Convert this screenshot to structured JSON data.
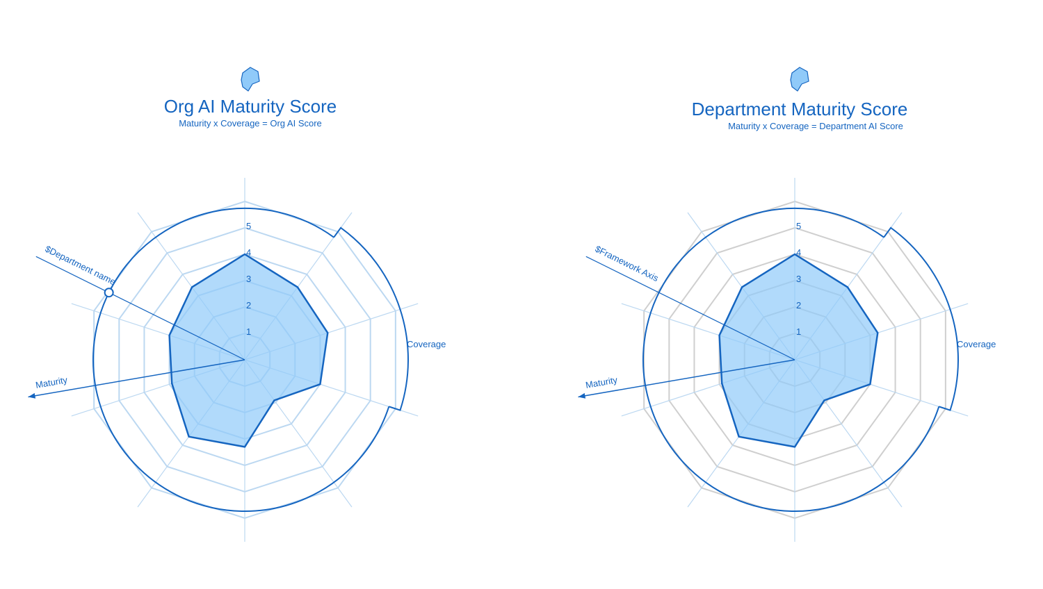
{
  "charts": [
    {
      "title": "Org AI Maturity Score",
      "subtitle": "Maturity x Coverage = Org AI Score",
      "diagonal_label": "$Department name",
      "coverage_label": "Coverage",
      "maturity_label": "Maturity",
      "ring_color": "#bcd8f1"
    },
    {
      "title": "Department Maturity Score",
      "subtitle": "Maturity x Coverage = Department AI Score",
      "diagonal_label": "$Framework Axis",
      "coverage_label": "Coverage",
      "maturity_label": "Maturity",
      "ring_color": "#cfcfcf"
    }
  ],
  "chart_data": [
    {
      "type": "radar",
      "axes_count": 10,
      "scale": [
        0,
        5
      ],
      "tick_labels": [
        "1",
        "2",
        "3",
        "4",
        "5"
      ],
      "values": [
        4.0,
        3.4,
        3.3,
        3.0,
        1.9,
        3.3,
        3.6,
        2.9,
        3.0,
        3.4
      ],
      "coverage_band": {
        "start_axis": 1,
        "end_axis": 3,
        "level": "outer"
      },
      "colors": {
        "line": "#1565c0",
        "fill": "#90caf9",
        "spoke": "#bcd8f1"
      }
    },
    {
      "type": "radar",
      "axes_count": 10,
      "scale": [
        0,
        5
      ],
      "tick_labels": [
        "1",
        "2",
        "3",
        "4",
        "5"
      ],
      "values": [
        4.0,
        3.4,
        3.3,
        3.0,
        1.9,
        3.3,
        3.6,
        2.9,
        3.0,
        3.4
      ],
      "coverage_band": {
        "start_axis": 1,
        "end_axis": 3,
        "level": "outer"
      },
      "colors": {
        "line": "#1565c0",
        "fill": "#90caf9",
        "spoke": "#bcd8f1"
      }
    }
  ]
}
